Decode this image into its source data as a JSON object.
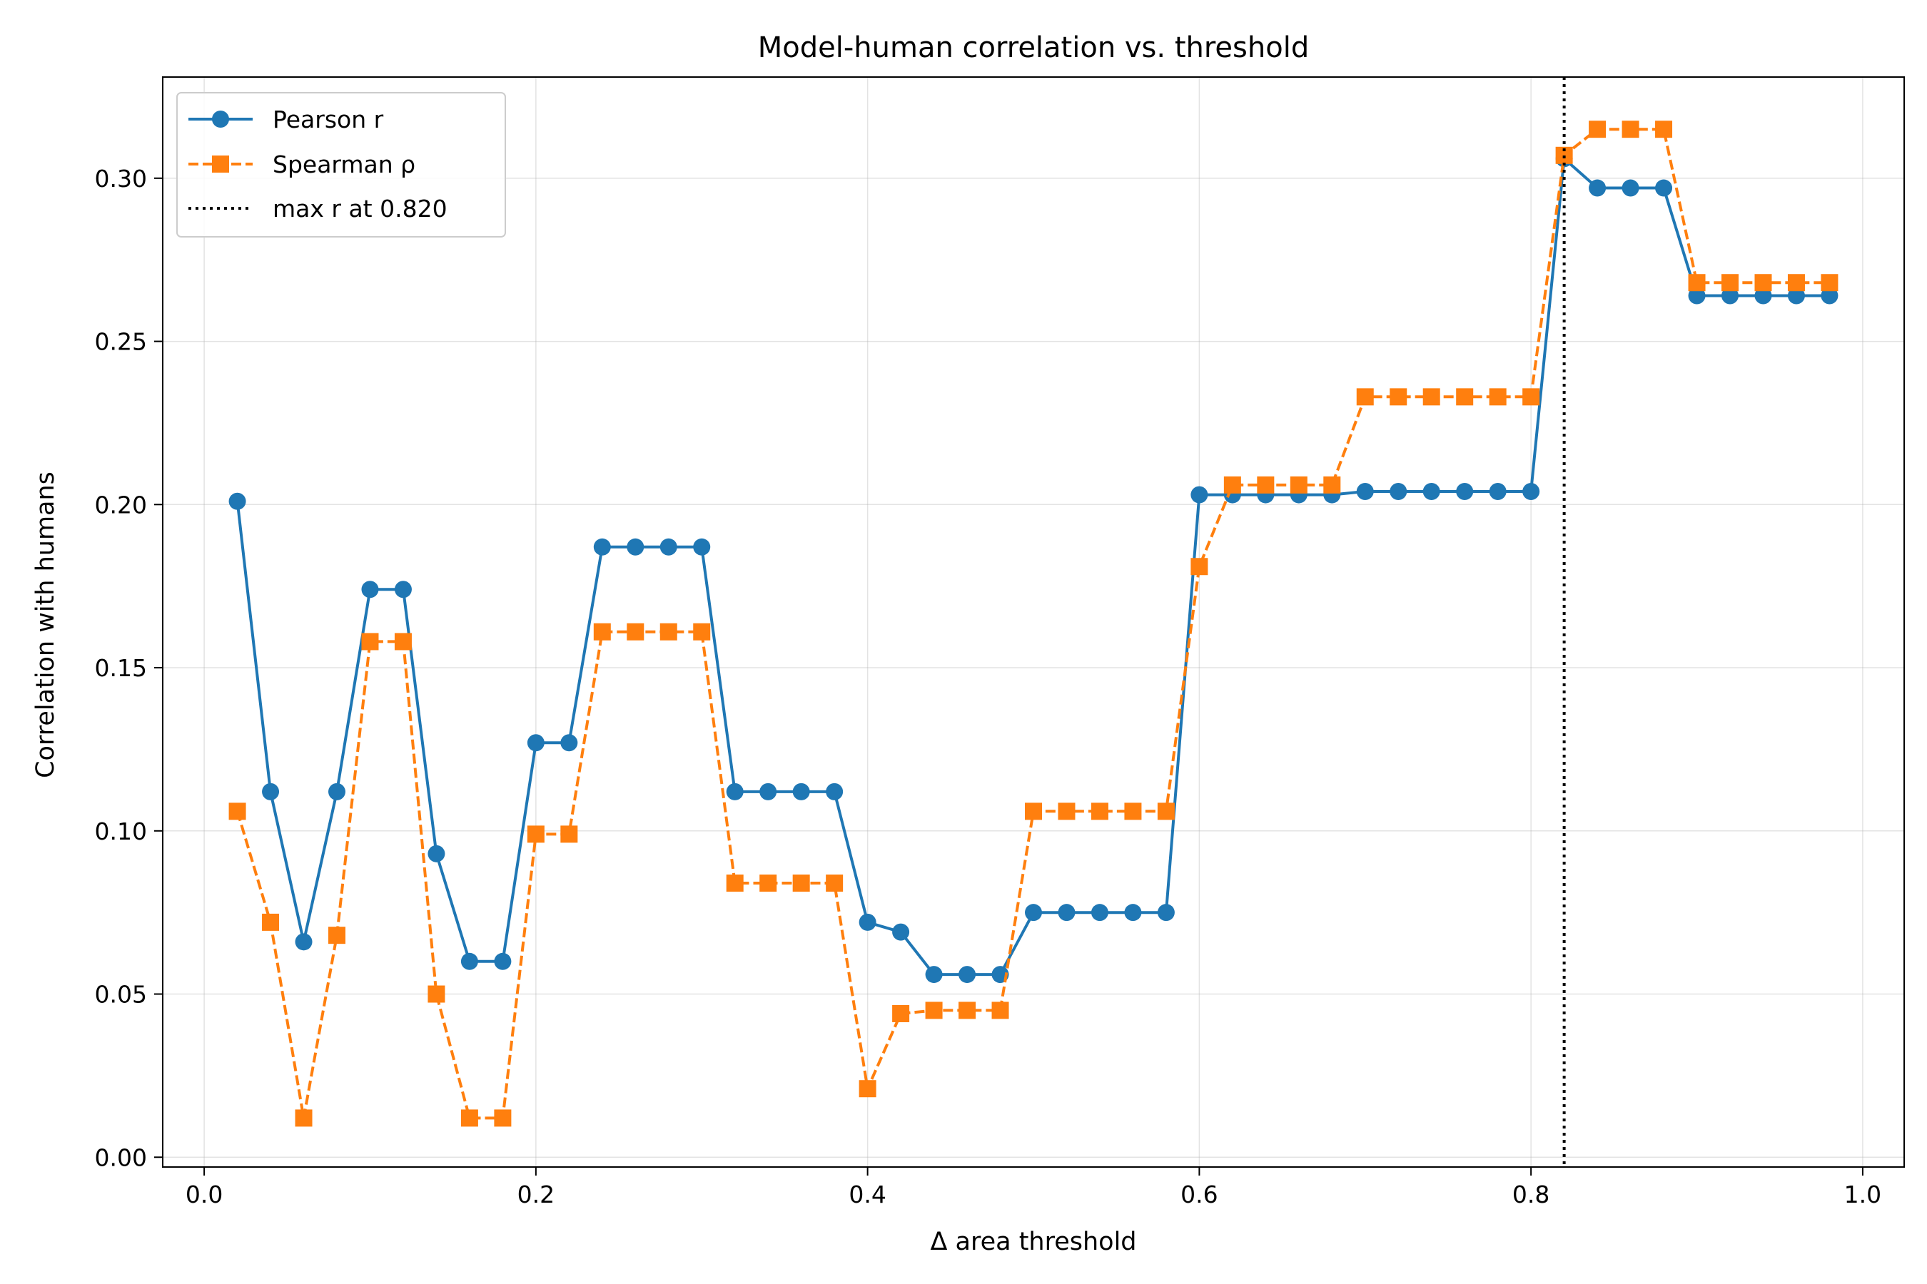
{
  "chart_data": {
    "type": "line",
    "title": "Model-human correlation vs. threshold",
    "xlabel": "Δ area threshold",
    "ylabel": "Correlation with humans",
    "xlim": [
      -0.025,
      1.025
    ],
    "ylim": [
      -0.003,
      0.331
    ],
    "xticks": [
      0.0,
      0.2,
      0.4,
      0.6,
      0.8,
      1.0
    ],
    "xtick_labels": [
      "0.0",
      "0.2",
      "0.4",
      "0.6",
      "0.8",
      "1.0"
    ],
    "yticks": [
      0.0,
      0.05,
      0.1,
      0.15,
      0.2,
      0.25,
      0.3
    ],
    "ytick_labels": [
      "0.00",
      "0.05",
      "0.10",
      "0.15",
      "0.20",
      "0.25",
      "0.30"
    ],
    "grid": true,
    "legend_position": "top-left",
    "x": [
      0.02,
      0.04,
      0.06,
      0.08,
      0.1,
      0.12,
      0.14,
      0.16,
      0.18,
      0.2,
      0.22,
      0.24,
      0.26,
      0.28,
      0.3,
      0.32,
      0.34,
      0.36,
      0.38,
      0.4,
      0.42,
      0.44,
      0.46,
      0.48,
      0.5,
      0.52,
      0.54,
      0.56,
      0.58,
      0.6,
      0.62,
      0.64,
      0.66,
      0.68,
      0.7,
      0.72,
      0.74,
      0.76,
      0.78,
      0.8,
      0.82,
      0.84,
      0.86,
      0.88,
      0.9,
      0.92,
      0.94,
      0.96,
      0.98
    ],
    "series": [
      {
        "name": "Pearson r",
        "color": "#1f77b4",
        "marker": "circle",
        "linestyle": "solid",
        "values": [
          0.201,
          0.112,
          0.066,
          0.112,
          0.174,
          0.174,
          0.093,
          0.06,
          0.06,
          0.127,
          0.127,
          0.187,
          0.187,
          0.187,
          0.187,
          0.112,
          0.112,
          0.112,
          0.112,
          0.072,
          0.069,
          0.056,
          0.056,
          0.056,
          0.075,
          0.075,
          0.075,
          0.075,
          0.075,
          0.203,
          0.203,
          0.203,
          0.203,
          0.203,
          0.204,
          0.204,
          0.204,
          0.204,
          0.204,
          0.204,
          0.306,
          0.297,
          0.297,
          0.297,
          0.264,
          0.264,
          0.264,
          0.264,
          0.264
        ]
      },
      {
        "name": "Spearman ρ",
        "color": "#ff7f0e",
        "marker": "square",
        "linestyle": "dashed",
        "values": [
          0.106,
          0.072,
          0.012,
          0.068,
          0.158,
          0.158,
          0.05,
          0.012,
          0.012,
          0.099,
          0.099,
          0.161,
          0.161,
          0.161,
          0.161,
          0.084,
          0.084,
          0.084,
          0.084,
          0.021,
          0.044,
          0.045,
          0.045,
          0.045,
          0.106,
          0.106,
          0.106,
          0.106,
          0.106,
          0.181,
          0.206,
          0.206,
          0.206,
          0.206,
          0.233,
          0.233,
          0.233,
          0.233,
          0.233,
          0.233,
          0.307,
          0.315,
          0.315,
          0.315,
          0.268,
          0.268,
          0.268,
          0.268,
          0.268
        ]
      }
    ],
    "vline": {
      "x": 0.82,
      "label": "max r at 0.820",
      "color": "#000000",
      "linestyle": "dotted"
    }
  }
}
